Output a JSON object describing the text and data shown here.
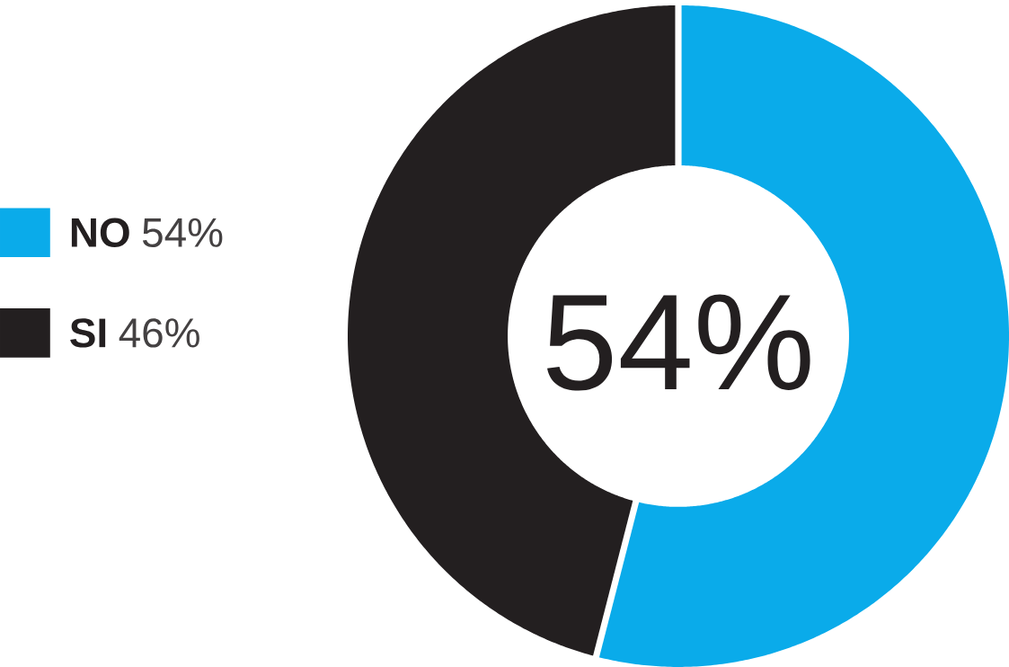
{
  "chart_data": {
    "type": "donut",
    "categories": [
      "NO",
      "SI"
    ],
    "values": [
      54,
      46
    ],
    "colors": [
      "#0aabea",
      "#231f20"
    ],
    "value_labels": [
      "54%",
      "46%"
    ],
    "annotations": [
      "54%"
    ],
    "legend": "left"
  }
}
